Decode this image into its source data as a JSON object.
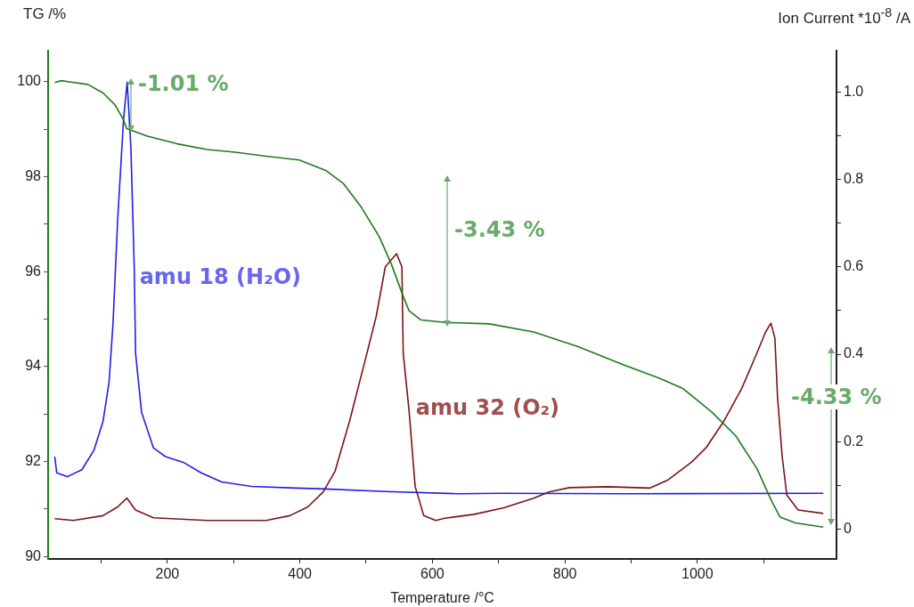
{
  "chart_data": {
    "type": "line",
    "xlabel": "Temperature /°C",
    "ylabel": "TG /%",
    "y2label": "Ion Current *10$^{-8}$ /A",
    "xlim": [
      20,
      1210
    ],
    "xticks": [
      {
        "value": 100,
        "label": null
      },
      200,
      {
        "value": 300,
        "label": null
      },
      400,
      {
        "value": 500,
        "label": null
      },
      600,
      {
        "value": 700,
        "label": null
      },
      800,
      {
        "value": 900,
        "label": null
      },
      1000,
      {
        "value": 1100,
        "label": null
      }
    ],
    "ylim": [
      89.95,
      100.65
    ],
    "yticks": [
      90,
      {
        "value": 91,
        "label": null
      },
      92,
      {
        "value": 93,
        "label": null
      },
      94,
      {
        "value": 95,
        "label": null
      },
      96,
      {
        "value": 97,
        "label": null
      },
      98,
      {
        "value": 99,
        "label": null
      },
      100
    ],
    "y2lim": [
      -0.068,
      1.094
    ],
    "y2ticks": [
      0,
      {
        "value": 0.1,
        "label": null
      },
      0.2,
      {
        "value": 0.3,
        "label": null
      },
      0.4,
      {
        "value": 0.5,
        "label": null
      },
      0.6,
      {
        "value": 0.7,
        "label": null
      },
      0.8,
      {
        "value": 0.9,
        "label": null
      },
      {
        "value": 1,
        "label": "1.0"
      }
    ],
    "marker": "none",
    "line_style": "solid",
    "legend": false,
    "series": [
      {
        "color": "#1e7a1e",
        "x": [
          30,
          40,
          50,
          80,
          103,
          121,
          134,
          138.5,
          170,
          215,
          260,
          305,
          349,
          399,
          439,
          466,
          493,
          520,
          538,
          556,
          565,
          583,
          619,
          686,
          753,
          820,
          888,
          942,
          978,
          1022,
          1058,
          1090,
          1112,
          1125,
          1148,
          1190
        ],
        "values": [
          99.98,
          100.02,
          100.0,
          99.94,
          99.76,
          99.51,
          99.19,
          99.01,
          98.85,
          98.69,
          98.57,
          98.51,
          98.43,
          98.35,
          98.13,
          97.85,
          97.35,
          96.73,
          96.16,
          95.48,
          95.17,
          94.98,
          94.93,
          94.9,
          94.73,
          94.42,
          94.04,
          93.76,
          93.54,
          93.04,
          92.54,
          91.85,
          91.17,
          90.83,
          90.71,
          90.62
        ]
      },
      {
        "color": "#1f1fe6",
        "axis": "y2",
        "x": [
          30,
          33,
          49,
          71,
          89,
          103,
          112,
          118,
          125,
          134,
          139.4,
          145,
          150,
          152,
          161,
          179,
          197,
          224,
          251,
          282,
          327,
          394,
          439,
          529,
          641,
          700,
          900,
          1190
        ],
        "values": [
          0.166,
          0.129,
          0.12,
          0.136,
          0.18,
          0.247,
          0.336,
          0.471,
          0.708,
          0.94,
          1.022,
          0.871,
          0.6,
          0.403,
          0.268,
          0.186,
          0.166,
          0.153,
          0.129,
          0.108,
          0.098,
          0.094,
          0.092,
          0.086,
          0.081,
          0.082,
          0.081,
          0.082
        ]
      },
      {
        "color": "#7a1414",
        "axis": "y2",
        "x": [
          30,
          58,
          103,
          125,
          139,
          152,
          179,
          260,
          349,
          385,
          412,
          435,
          453,
          475,
          498,
          515,
          529,
          546,
          554,
          556,
          565,
          574,
          587,
          605,
          619,
          663,
          708,
          753,
          776,
          807,
          865,
          928,
          955,
          991,
          1013,
          1040,
          1067,
          1090,
          1103,
          1111,
          1117,
          1121,
          1128,
          1135,
          1152,
          1190
        ],
        "values": [
          0.024,
          0.02,
          0.031,
          0.051,
          0.071,
          0.044,
          0.026,
          0.02,
          0.02,
          0.031,
          0.051,
          0.085,
          0.132,
          0.247,
          0.383,
          0.485,
          0.6,
          0.63,
          0.6,
          0.403,
          0.268,
          0.098,
          0.031,
          0.02,
          0.025,
          0.034,
          0.049,
          0.071,
          0.085,
          0.095,
          0.097,
          0.094,
          0.112,
          0.153,
          0.186,
          0.247,
          0.322,
          0.403,
          0.451,
          0.471,
          0.437,
          0.302,
          0.166,
          0.078,
          0.044,
          0.036
        ]
      }
    ],
    "annotations": [
      {
        "text": "-1.01 %",
        "x": 145,
        "y": 99.5
      },
      "-3.43 %",
      "-4.33 %",
      {
        "text": "amu 18 (H₂O)",
        "x": 150,
        "y": 95.85
      },
      {
        "text": "amu 32 (O₂)",
        "x": 567,
        "y": 93.1
      }
    ]
  }
}
